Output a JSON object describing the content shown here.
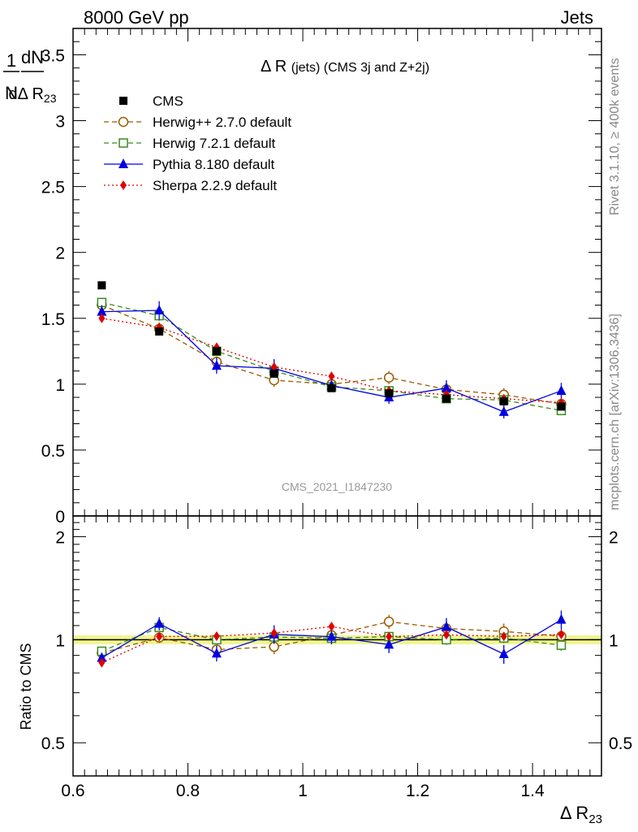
{
  "header": {
    "left": "8000 GeV pp",
    "right": "Jets"
  },
  "side_text": {
    "rivet": "Rivet 3.1.10, ≥ 400k events",
    "mcplots": "mcplots.cern.ch [arXiv:1306.3436]"
  },
  "watermark": "CMS_2021_I1847230",
  "chart_data": {
    "type": "line",
    "title": "Δ R (jets) (CMS 3j and Z+2j)",
    "xlabel": "Δ R23",
    "ylabel": "1/N dN/dΔ R23",
    "ratio_ylabel": "Ratio to CMS",
    "xlim": [
      0.6,
      1.52
    ],
    "ylim": [
      0,
      3.7
    ],
    "ratio_ylim": [
      0.4,
      2.3
    ],
    "x_ticks": [
      "0.6",
      "0.8",
      "1",
      "1.2",
      "1.4"
    ],
    "y_ticks": [
      "0",
      "0.5",
      "1",
      "1.5",
      "2",
      "2.5",
      "3",
      "3.5"
    ],
    "ratio_ticks": [
      "0.5",
      "1",
      "2"
    ],
    "x": [
      0.65,
      0.75,
      0.85,
      0.95,
      1.05,
      1.15,
      1.25,
      1.35,
      1.45
    ],
    "data": {
      "name": "CMS",
      "values": [
        1.75,
        1.4,
        1.25,
        1.08,
        0.97,
        0.93,
        0.89,
        0.87,
        0.83
      ],
      "color": "#000000"
    },
    "series": [
      {
        "name": "Herwig++ 2.7.0 default",
        "values": [
          1.6,
          1.42,
          1.17,
          1.03,
          1.0,
          1.05,
          0.96,
          0.92,
          0.85
        ],
        "errors": [
          0.04,
          0.05,
          0.04,
          0.05,
          0.04,
          0.05,
          0.05,
          0.05,
          0.04
        ],
        "color": "#9a5a00",
        "marker": "circle-open",
        "dash": "6,4"
      },
      {
        "name": "Herwig 7.2.1 default",
        "values": [
          1.62,
          1.52,
          1.25,
          1.1,
          0.98,
          0.95,
          0.89,
          0.88,
          0.8
        ],
        "errors": [
          0.03,
          0.04,
          0.03,
          0.03,
          0.03,
          0.03,
          0.03,
          0.03,
          0.03
        ],
        "color": "#3a8c1e",
        "marker": "square-open",
        "dash": "6,4"
      },
      {
        "name": "Pythia 8.180 default",
        "values": [
          1.55,
          1.56,
          1.14,
          1.12,
          0.99,
          0.9,
          0.97,
          0.79,
          0.95
        ],
        "errors": [
          0.05,
          0.07,
          0.06,
          0.07,
          0.05,
          0.05,
          0.06,
          0.05,
          0.06
        ],
        "color": "#0000e0",
        "marker": "triangle",
        "dash": ""
      },
      {
        "name": "Sherpa 2.2.9 default",
        "values": [
          1.5,
          1.43,
          1.28,
          1.13,
          1.06,
          0.95,
          0.92,
          0.89,
          0.86
        ],
        "errors": [
          0.02,
          0.03,
          0.02,
          0.02,
          0.02,
          0.02,
          0.02,
          0.02,
          0.02
        ],
        "color": "#e00000",
        "marker": "diamond",
        "dash": "2,3"
      }
    ]
  }
}
